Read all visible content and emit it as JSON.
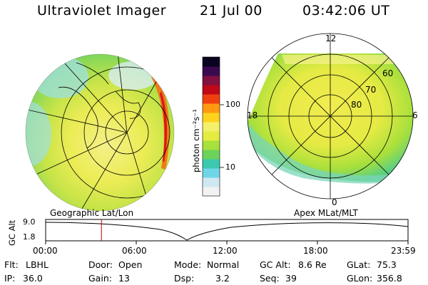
{
  "header": {
    "instrument": "Ultraviolet Imager",
    "date": "21 Jul 00",
    "time": "03:42:06 UT"
  },
  "colorbar": {
    "unit_label": "photon cm⁻²s⁻¹",
    "ticks": [
      "100",
      "10"
    ],
    "colors": [
      "#f2f2f2",
      "#cfe8f2",
      "#6fd6e8",
      "#3cc9b0",
      "#6cd35a",
      "#a8e03c",
      "#e4ec40",
      "#f4f06a",
      "#ffd21e",
      "#ff9a10",
      "#f04010",
      "#c00818",
      "#801040",
      "#3a0a50",
      "#0a0420"
    ]
  },
  "left_map": {
    "label": "Geographic Lat/Lon"
  },
  "right_map": {
    "label": "Apex MLat/MLT",
    "mlt_labels": {
      "top": "12",
      "left": "18",
      "right": "6",
      "bottom": "0"
    },
    "lat_labels": [
      "60",
      "70",
      "80"
    ]
  },
  "timeline": {
    "ylabel": "GC Alt",
    "y_ticks": [
      "9.0",
      "1.8"
    ],
    "x_ticks": [
      "00:00",
      "06:00",
      "12:00",
      "18:00",
      "23:59"
    ],
    "current_time_fraction": 0.154
  },
  "status": {
    "row1": [
      {
        "label": "Flt:",
        "value": "LBHL"
      },
      {
        "label": "Door:",
        "value": "Open"
      },
      {
        "label": "Mode:",
        "value": "Normal"
      },
      {
        "label": "GC Alt:",
        "value": "8.6 Re"
      },
      {
        "label": "GLat:",
        "value": "75.3"
      }
    ],
    "row2": [
      {
        "label": "IP:",
        "value": "36.0"
      },
      {
        "label": "Gain:",
        "value": "13"
      },
      {
        "label": "Dsp:",
        "value": "3.2"
      },
      {
        "label": "Seq:",
        "value": "39"
      },
      {
        "label": "GLon:",
        "value": "356.8"
      }
    ]
  }
}
